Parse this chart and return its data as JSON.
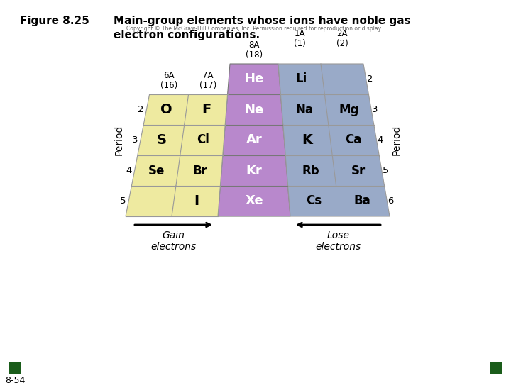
{
  "title_left": "Figure 8.25",
  "title_right": "Main-group elements whose ions have noble gas\nelectron configurations.",
  "copyright_text": "Copyright © The McGraw-Hill Companies, Inc. Permission required for reproduction or display.",
  "bg_color": "#ffffff",
  "yellow_color": "#eeeaa0",
  "yellow_shade": "#d8d488",
  "purple_color": "#b888cc",
  "purple_dark": "#9966bb",
  "blue_color": "#99aac8",
  "blue_shade": "#7a90b0",
  "dark_green": "#1a5c1a",
  "cell_border": "#888888",
  "purple_syms": [
    "He",
    "Ne",
    "Ar",
    "Kr",
    "Xe"
  ],
  "yellow_syms": [
    [
      "O",
      "F"
    ],
    [
      "S",
      "Cl"
    ],
    [
      "Se",
      "Br"
    ],
    [
      "",
      "I"
    ]
  ],
  "blue_col0": [
    "Li",
    "Na",
    "K",
    "Rb",
    "Cs"
  ],
  "blue_col1": [
    "",
    "Mg",
    "Ca",
    "Sr",
    "Ba"
  ],
  "period_left": [
    "2",
    "3",
    "4",
    "5"
  ],
  "period_right": [
    "2",
    "3",
    "4",
    "5",
    "6"
  ]
}
